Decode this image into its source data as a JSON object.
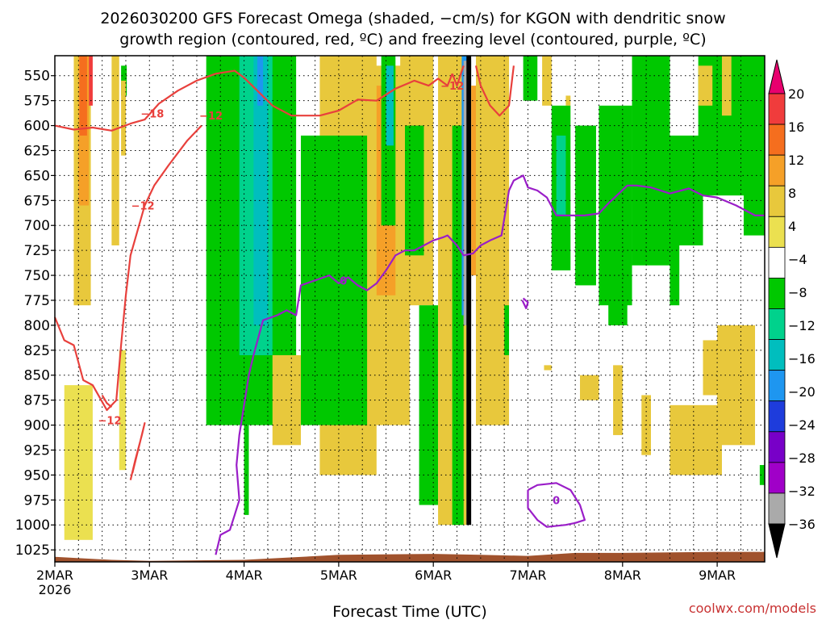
{
  "chart_data": {
    "type": "heatmap",
    "title_line1": "2026030200 GFS Forecast Omega (shaded, −cm/s) for KGON with dendritic snow",
    "title_line2": "growth region (contoured, red, ºC) and freezing level (contoured, purple, ºC)",
    "xlabel": "Forecast Time (UTC)",
    "credit": "coolwx.com/models",
    "x_ticks": [
      {
        "day": 0,
        "label": "2MAR",
        "sub": "2026"
      },
      {
        "day": 1,
        "label": "3MAR",
        "sub": ""
      },
      {
        "day": 2,
        "label": "4MAR",
        "sub": ""
      },
      {
        "day": 3,
        "label": "5MAR",
        "sub": ""
      },
      {
        "day": 4,
        "label": "6MAR",
        "sub": ""
      },
      {
        "day": 5,
        "label": "7MAR",
        "sub": ""
      },
      {
        "day": 6,
        "label": "8MAR",
        "sub": ""
      },
      {
        "day": 7,
        "label": "9MAR",
        "sub": ""
      }
    ],
    "xlim_days": [
      0,
      7.5
    ],
    "y_ticks": [
      550,
      575,
      600,
      625,
      650,
      675,
      700,
      725,
      750,
      775,
      800,
      825,
      850,
      875,
      900,
      925,
      950,
      975,
      1000,
      1025
    ],
    "ylim_hpa": [
      530,
      1037
    ],
    "grid": true,
    "colorbar": {
      "labels": [
        "20",
        "16",
        "12",
        "8",
        "4",
        "−4",
        "−8",
        "−12",
        "−16",
        "−20",
        "−24",
        "−28",
        "−32",
        "−36"
      ],
      "colors": [
        "#e8006e",
        "#f03c3c",
        "#f56e1e",
        "#f5a028",
        "#e8c83c",
        "#ebe050",
        "#ffffff",
        "#00c800",
        "#00d28c",
        "#00bebe",
        "#1e96f0",
        "#1e3cdc",
        "#7800c8",
        "#a000c8",
        "#aaaaaa",
        "#000000"
      ]
    },
    "ground": {
      "color": "#a0522d",
      "pressure_profile": [
        [
          0,
          1032
        ],
        [
          0.6,
          1035
        ],
        [
          1.0,
          1036
        ],
        [
          2.0,
          1035
        ],
        [
          2.2,
          1034
        ],
        [
          3.0,
          1030
        ],
        [
          4.0,
          1029
        ],
        [
          4.5,
          1030
        ],
        [
          5.0,
          1031
        ],
        [
          5.5,
          1028
        ],
        [
          6.0,
          1028
        ],
        [
          7.0,
          1027
        ],
        [
          7.5,
          1027
        ]
      ]
    },
    "omega_shaded": [
      {
        "color": "#00c800",
        "day0": 0.7,
        "day1": 0.76,
        "p_top": 540,
        "p_bot": 570
      },
      {
        "color": "#e8c83c",
        "day0": 0.2,
        "day1": 0.38,
        "p_top": 530,
        "p_bot": 780
      },
      {
        "color": "#f5a028",
        "day0": 0.25,
        "day1": 0.36,
        "p_top": 530,
        "p_bot": 680
      },
      {
        "color": "#f56e1e",
        "day0": 0.26,
        "day1": 0.34,
        "p_top": 530,
        "p_bot": 610
      },
      {
        "color": "#f03c3c",
        "day0": 0.36,
        "day1": 0.4,
        "p_top": 530,
        "p_bot": 580
      },
      {
        "color": "#e8c83c",
        "day0": 0.6,
        "day1": 0.68,
        "p_top": 530,
        "p_bot": 720
      },
      {
        "color": "#e8c83c",
        "day0": 0.7,
        "day1": 0.75,
        "p_top": 555,
        "p_bot": 630
      },
      {
        "color": "#ebe050",
        "day0": 0.1,
        "day1": 0.4,
        "p_top": 860,
        "p_bot": 1015
      },
      {
        "color": "#ebe050",
        "day0": 0.68,
        "day1": 0.75,
        "p_top": 825,
        "p_bot": 945
      },
      {
        "color": "#00c800",
        "day0": 1.6,
        "day1": 2.55,
        "p_top": 530,
        "p_bot": 900
      },
      {
        "color": "#00d28c",
        "day0": 1.95,
        "day1": 2.3,
        "p_top": 530,
        "p_bot": 830
      },
      {
        "color": "#00bebe",
        "day0": 2.1,
        "day1": 2.25,
        "p_top": 530,
        "p_bot": 800
      },
      {
        "color": "#1e96f0",
        "day0": 2.14,
        "day1": 2.2,
        "p_top": 530,
        "p_bot": 580
      },
      {
        "color": "#00c800",
        "day0": 2.0,
        "day1": 2.05,
        "p_top": 900,
        "p_bot": 990
      },
      {
        "color": "#e8c83c",
        "day0": 2.3,
        "day1": 2.6,
        "p_top": 830,
        "p_bot": 920
      },
      {
        "color": "#e8c83c",
        "day0": 2.8,
        "day1": 3.4,
        "p_top": 530,
        "p_bot": 950
      },
      {
        "color": "#00c800",
        "day0": 2.6,
        "day1": 3.35,
        "p_top": 610,
        "p_bot": 900
      },
      {
        "color": "#e8c83c",
        "day0": 3.3,
        "day1": 3.75,
        "p_top": 540,
        "p_bot": 900
      },
      {
        "color": "#f5a028",
        "day0": 3.4,
        "day1": 3.6,
        "p_top": 560,
        "p_bot": 770
      },
      {
        "color": "#00c800",
        "day0": 3.45,
        "day1": 3.6,
        "p_top": 530,
        "p_bot": 700
      },
      {
        "color": "#00bebe",
        "day0": 3.5,
        "day1": 3.58,
        "p_top": 540,
        "p_bot": 620
      },
      {
        "color": "#e8c83c",
        "day0": 3.65,
        "day1": 4.0,
        "p_top": 530,
        "p_bot": 780
      },
      {
        "color": "#00c800",
        "day0": 3.7,
        "day1": 3.9,
        "p_top": 600,
        "p_bot": 730
      },
      {
        "color": "#00c800",
        "day0": 3.85,
        "day1": 4.05,
        "p_top": 780,
        "p_bot": 980
      },
      {
        "color": "#e8c83c",
        "day0": 4.05,
        "day1": 4.35,
        "p_top": 530,
        "p_bot": 1000
      },
      {
        "color": "#00c800",
        "day0": 4.2,
        "day1": 4.32,
        "p_top": 600,
        "p_bot": 1000
      },
      {
        "color": "#1e96f0",
        "day0": 4.3,
        "day1": 4.36,
        "p_top": 530,
        "p_bot": 790
      },
      {
        "color": "#aaaaaa",
        "day0": 4.32,
        "day1": 4.4,
        "p_top": 535,
        "p_bot": 800
      },
      {
        "color": "#000000",
        "day0": 4.35,
        "day1": 4.4,
        "p_top": 530,
        "p_bot": 1000
      },
      {
        "color": "#f5a028",
        "day0": 4.4,
        "day1": 4.5,
        "p_top": 560,
        "p_bot": 750
      },
      {
        "color": "#e8c83c",
        "day0": 4.45,
        "day1": 4.8,
        "p_top": 530,
        "p_bot": 900
      },
      {
        "color": "#00c800",
        "day0": 4.75,
        "day1": 4.8,
        "p_top": 780,
        "p_bot": 830
      },
      {
        "color": "#00c800",
        "day0": 4.95,
        "day1": 5.1,
        "p_top": 530,
        "p_bot": 575
      },
      {
        "color": "#e8c83c",
        "day0": 5.15,
        "day1": 5.25,
        "p_top": 530,
        "p_bot": 580
      },
      {
        "color": "#e8c83c",
        "day0": 5.4,
        "day1": 5.45,
        "p_top": 570,
        "p_bot": 580
      },
      {
        "color": "#00c800",
        "day0": 5.25,
        "day1": 5.45,
        "p_top": 580,
        "p_bot": 745
      },
      {
        "color": "#00d28c",
        "day0": 5.3,
        "day1": 5.4,
        "p_top": 610,
        "p_bot": 690
      },
      {
        "color": "#00c800",
        "day0": 5.5,
        "day1": 5.72,
        "p_top": 600,
        "p_bot": 760
      },
      {
        "color": "#00c800",
        "day0": 5.75,
        "day1": 6.1,
        "p_top": 580,
        "p_bot": 780
      },
      {
        "color": "#00c800",
        "day0": 5.85,
        "day1": 6.05,
        "p_top": 700,
        "p_bot": 800
      },
      {
        "color": "#00c800",
        "day0": 6.1,
        "day1": 6.5,
        "p_top": 530,
        "p_bot": 740
      },
      {
        "color": "#00c800",
        "day0": 6.45,
        "day1": 6.85,
        "p_top": 610,
        "p_bot": 720
      },
      {
        "color": "#00c800",
        "day0": 6.5,
        "day1": 6.6,
        "p_top": 700,
        "p_bot": 780
      },
      {
        "color": "#00c800",
        "day0": 6.8,
        "day1": 7.3,
        "p_top": 530,
        "p_bot": 670
      },
      {
        "color": "#e8c83c",
        "day0": 6.8,
        "day1": 6.95,
        "p_top": 540,
        "p_bot": 580
      },
      {
        "color": "#e8c83c",
        "day0": 7.05,
        "day1": 7.15,
        "p_top": 530,
        "p_bot": 590
      },
      {
        "color": "#00c800",
        "day0": 7.28,
        "day1": 7.5,
        "p_top": 530,
        "p_bot": 710
      },
      {
        "color": "#e8c83c",
        "day0": 7.0,
        "day1": 7.4,
        "p_top": 800,
        "p_bot": 920
      },
      {
        "color": "#e8c83c",
        "day0": 6.5,
        "day1": 7.05,
        "p_top": 880,
        "p_bot": 950
      },
      {
        "color": "#e8c83c",
        "day0": 6.85,
        "day1": 7.1,
        "p_top": 815,
        "p_bot": 870
      },
      {
        "color": "#e8c83c",
        "day0": 5.55,
        "day1": 5.75,
        "p_top": 850,
        "p_bot": 875
      },
      {
        "color": "#e8c83c",
        "day0": 5.9,
        "day1": 6.0,
        "p_top": 840,
        "p_bot": 910
      },
      {
        "color": "#e8c83c",
        "day0": 6.2,
        "day1": 6.3,
        "p_top": 870,
        "p_bot": 930
      },
      {
        "color": "#e8c83c",
        "day0": 5.17,
        "day1": 5.25,
        "p_top": 840,
        "p_bot": 845
      },
      {
        "color": "#00c800",
        "day0": 7.45,
        "day1": 7.5,
        "p_top": 940,
        "p_bot": 960
      }
    ],
    "dgz_contours": [
      {
        "label": "−18",
        "label_day": 1.03,
        "label_p": 588,
        "points": [
          [
            0,
            600
          ],
          [
            0.2,
            604
          ],
          [
            0.4,
            602
          ],
          [
            0.6,
            605
          ],
          [
            0.8,
            598
          ],
          [
            0.95,
            594
          ],
          [
            1.1,
            578
          ],
          [
            1.3,
            565
          ],
          [
            1.5,
            555
          ],
          [
            1.7,
            548
          ],
          [
            1.9,
            545
          ],
          [
            2.0,
            552
          ]
        ]
      },
      {
        "label": "−12",
        "label_day": 1.65,
        "label_p": 590,
        "points": [
          [
            2.0,
            552
          ],
          [
            2.3,
            580
          ],
          [
            2.5,
            590
          ],
          [
            2.8,
            590
          ],
          [
            3.0,
            585
          ],
          [
            3.2,
            574
          ],
          [
            3.4,
            575
          ],
          [
            3.6,
            563
          ],
          [
            3.8,
            555
          ],
          [
            3.95,
            560
          ],
          [
            4.05,
            553
          ],
          [
            4.15,
            560
          ],
          [
            4.2,
            548
          ]
        ]
      },
      {
        "label": "−12",
        "label_day": 0.93,
        "label_p": 680,
        "points": [
          [
            0,
            792
          ],
          [
            0.1,
            815
          ],
          [
            0.2,
            820
          ],
          [
            0.3,
            855
          ],
          [
            0.4,
            860
          ],
          [
            0.55,
            885
          ],
          [
            0.65,
            875
          ],
          [
            0.7,
            820
          ],
          [
            0.75,
            770
          ],
          [
            0.8,
            730
          ],
          [
            0.95,
            680
          ],
          [
            1.05,
            660
          ],
          [
            1.2,
            640
          ],
          [
            1.4,
            615
          ],
          [
            1.55,
            600
          ]
        ]
      },
      {
        "label": "−12",
        "label_day": 0.58,
        "label_p": 895,
        "points": [
          [
            0.5,
            870
          ],
          [
            0.55,
            878
          ],
          [
            0.6,
            882
          ]
        ]
      },
      {
        "label": "",
        "label_day": 0,
        "label_p": 0,
        "points": [
          [
            0.8,
            955
          ],
          [
            0.85,
            935
          ],
          [
            0.92,
            910
          ],
          [
            0.95,
            898
          ],
          [
            0.88,
            925
          ],
          [
            0.82,
            948
          ]
        ]
      },
      {
        "label": "−12",
        "label_day": 4.2,
        "label_p": 560,
        "points": [
          [
            4.2,
            548
          ],
          [
            4.25,
            560
          ],
          [
            4.32,
            540
          ]
        ]
      },
      {
        "label": "",
        "label_day": 0,
        "label_p": 0,
        "points": [
          [
            4.45,
            540
          ],
          [
            4.5,
            560
          ],
          [
            4.6,
            580
          ],
          [
            4.7,
            590
          ],
          [
            4.8,
            580
          ],
          [
            4.85,
            540
          ]
        ]
      }
    ],
    "freezing_contours": [
      {
        "label": "0",
        "label_day": 3.05,
        "label_p": 755,
        "points": [
          [
            1.7,
            1030
          ],
          [
            1.75,
            1010
          ],
          [
            1.85,
            1005
          ],
          [
            1.9,
            990
          ],
          [
            1.95,
            975
          ],
          [
            1.92,
            940
          ],
          [
            1.95,
            910
          ],
          [
            2.0,
            880
          ],
          [
            2.05,
            850
          ],
          [
            2.1,
            830
          ],
          [
            2.2,
            795
          ],
          [
            2.35,
            790
          ],
          [
            2.45,
            785
          ],
          [
            2.55,
            790
          ],
          [
            2.6,
            760
          ],
          [
            2.75,
            755
          ],
          [
            2.9,
            750
          ],
          [
            3.0,
            758
          ],
          [
            3.1,
            752
          ],
          [
            3.2,
            760
          ],
          [
            3.3,
            765
          ],
          [
            3.4,
            758
          ],
          [
            3.5,
            745
          ],
          [
            3.6,
            730
          ],
          [
            3.7,
            725
          ],
          [
            3.8,
            725
          ],
          [
            3.9,
            720
          ],
          [
            4.0,
            715
          ],
          [
            4.1,
            712
          ],
          [
            4.15,
            710
          ],
          [
            4.25,
            720
          ],
          [
            4.32,
            730
          ],
          [
            4.42,
            728
          ],
          [
            4.5,
            720
          ],
          [
            4.6,
            715
          ],
          [
            4.72,
            710
          ],
          [
            4.8,
            665
          ],
          [
            4.85,
            655
          ],
          [
            4.95,
            650
          ],
          [
            5.0,
            662
          ],
          [
            5.1,
            665
          ],
          [
            5.2,
            672
          ],
          [
            5.3,
            690
          ],
          [
            5.6,
            690
          ],
          [
            5.75,
            688
          ],
          [
            5.85,
            678
          ],
          [
            6.05,
            660
          ],
          [
            6.15,
            660
          ],
          [
            6.3,
            662
          ],
          [
            6.5,
            668
          ],
          [
            6.7,
            663
          ],
          [
            6.85,
            670
          ],
          [
            7.0,
            672
          ],
          [
            7.2,
            680
          ],
          [
            7.4,
            690
          ],
          [
            7.5,
            690
          ]
        ]
      },
      {
        "label": "",
        "label_day": 0,
        "label_p": 0,
        "points": [
          [
            4.95,
            773
          ],
          [
            5.0,
            777
          ],
          [
            4.98,
            783
          ],
          [
            4.94,
            775
          ]
        ]
      },
      {
        "label": "0",
        "label_day": 5.3,
        "label_p": 975,
        "points": [
          [
            5.0,
            965
          ],
          [
            5.1,
            960
          ],
          [
            5.3,
            958
          ],
          [
            5.45,
            965
          ],
          [
            5.55,
            980
          ],
          [
            5.6,
            995
          ],
          [
            5.5,
            998
          ],
          [
            5.4,
            1000
          ],
          [
            5.2,
            1002
          ],
          [
            5.1,
            995
          ],
          [
            5.0,
            983
          ],
          [
            5.0,
            965
          ]
        ]
      }
    ]
  }
}
